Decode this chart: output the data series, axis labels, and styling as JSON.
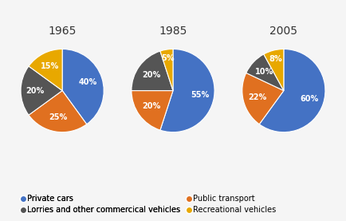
{
  "years": [
    "1965",
    "1985",
    "2005"
  ],
  "categories": [
    "Private cars",
    "Public transport",
    "Lorries and other commercical vehicles",
    "Recreational vehicles"
  ],
  "colors": [
    "#4472c4",
    "#e07020",
    "#555555",
    "#e8a800"
  ],
  "values": [
    [
      40,
      25,
      20,
      15
    ],
    [
      55,
      20,
      20,
      5
    ],
    [
      60,
      22,
      10,
      8
    ]
  ],
  "labels": [
    [
      "40%",
      "25%",
      "20%",
      "15%"
    ],
    [
      "55%",
      "20%",
      "20%",
      "5%"
    ],
    [
      "60%",
      "22%",
      "10%",
      "8%"
    ]
  ],
  "background_color": "#f5f5f5",
  "title_fontsize": 10,
  "label_fontsize": 7,
  "legend_fontsize": 7
}
